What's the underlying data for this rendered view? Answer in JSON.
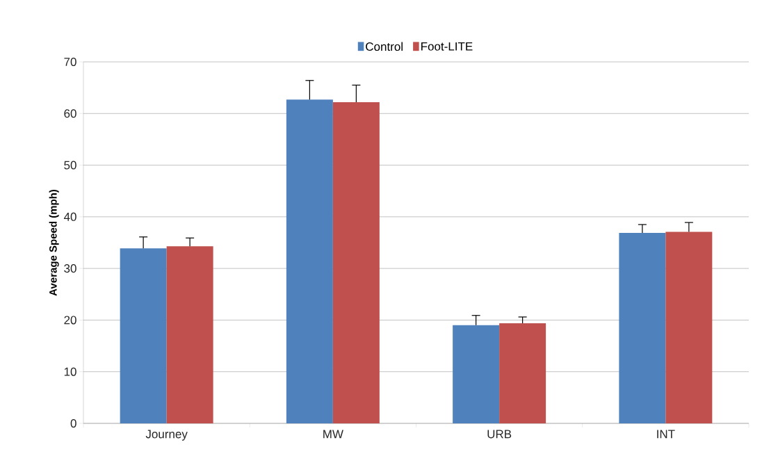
{
  "chart_data": {
    "type": "bar",
    "ylabel": "Average Speed (mph)",
    "categories": [
      "Journey",
      "MW",
      "URB",
      "INT"
    ],
    "series": [
      {
        "name": "Control",
        "color": "#4f81bd",
        "values": [
          33.9,
          62.7,
          19.0,
          36.9
        ],
        "errors": [
          [
            33.9,
            36.1
          ],
          [
            62.7,
            66.4
          ],
          [
            19.0,
            20.9
          ],
          [
            36.9,
            38.5
          ]
        ]
      },
      {
        "name": "Foot-LITE",
        "color": "#c0504d",
        "values": [
          34.3,
          62.2,
          19.4,
          37.1
        ],
        "errors": [
          [
            34.3,
            35.9
          ],
          [
            62.2,
            65.5
          ],
          [
            19.4,
            20.6
          ],
          [
            37.1,
            38.9
          ]
        ]
      }
    ],
    "ylim": [
      0,
      70
    ],
    "yticks": [
      0,
      10,
      20,
      30,
      40,
      50,
      60,
      70
    ],
    "grid": "y",
    "legend": "top"
  }
}
